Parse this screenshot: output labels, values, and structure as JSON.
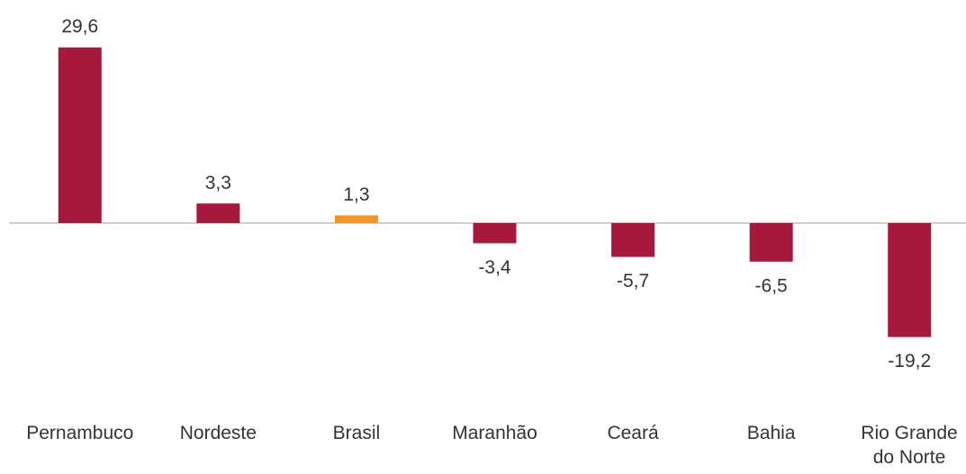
{
  "chart_data": {
    "type": "bar",
    "categories": [
      "Pernambuco",
      "Nordeste",
      "Brasil",
      "Maranhão",
      "Ceará",
      "Bahia",
      "Rio Grande do Norte"
    ],
    "values": [
      29.6,
      3.3,
      1.3,
      -3.4,
      -5.7,
      -6.5,
      -19.2
    ],
    "value_labels": [
      "29,6",
      "3,3",
      "1,3",
      "-3,4",
      "-5,7",
      "-6,5",
      "-19,2"
    ],
    "colors": [
      "#a6193c",
      "#a6193c",
      "#f7941d",
      "#a6193c",
      "#a6193c",
      "#a6193c",
      "#a6193c"
    ]
  }
}
